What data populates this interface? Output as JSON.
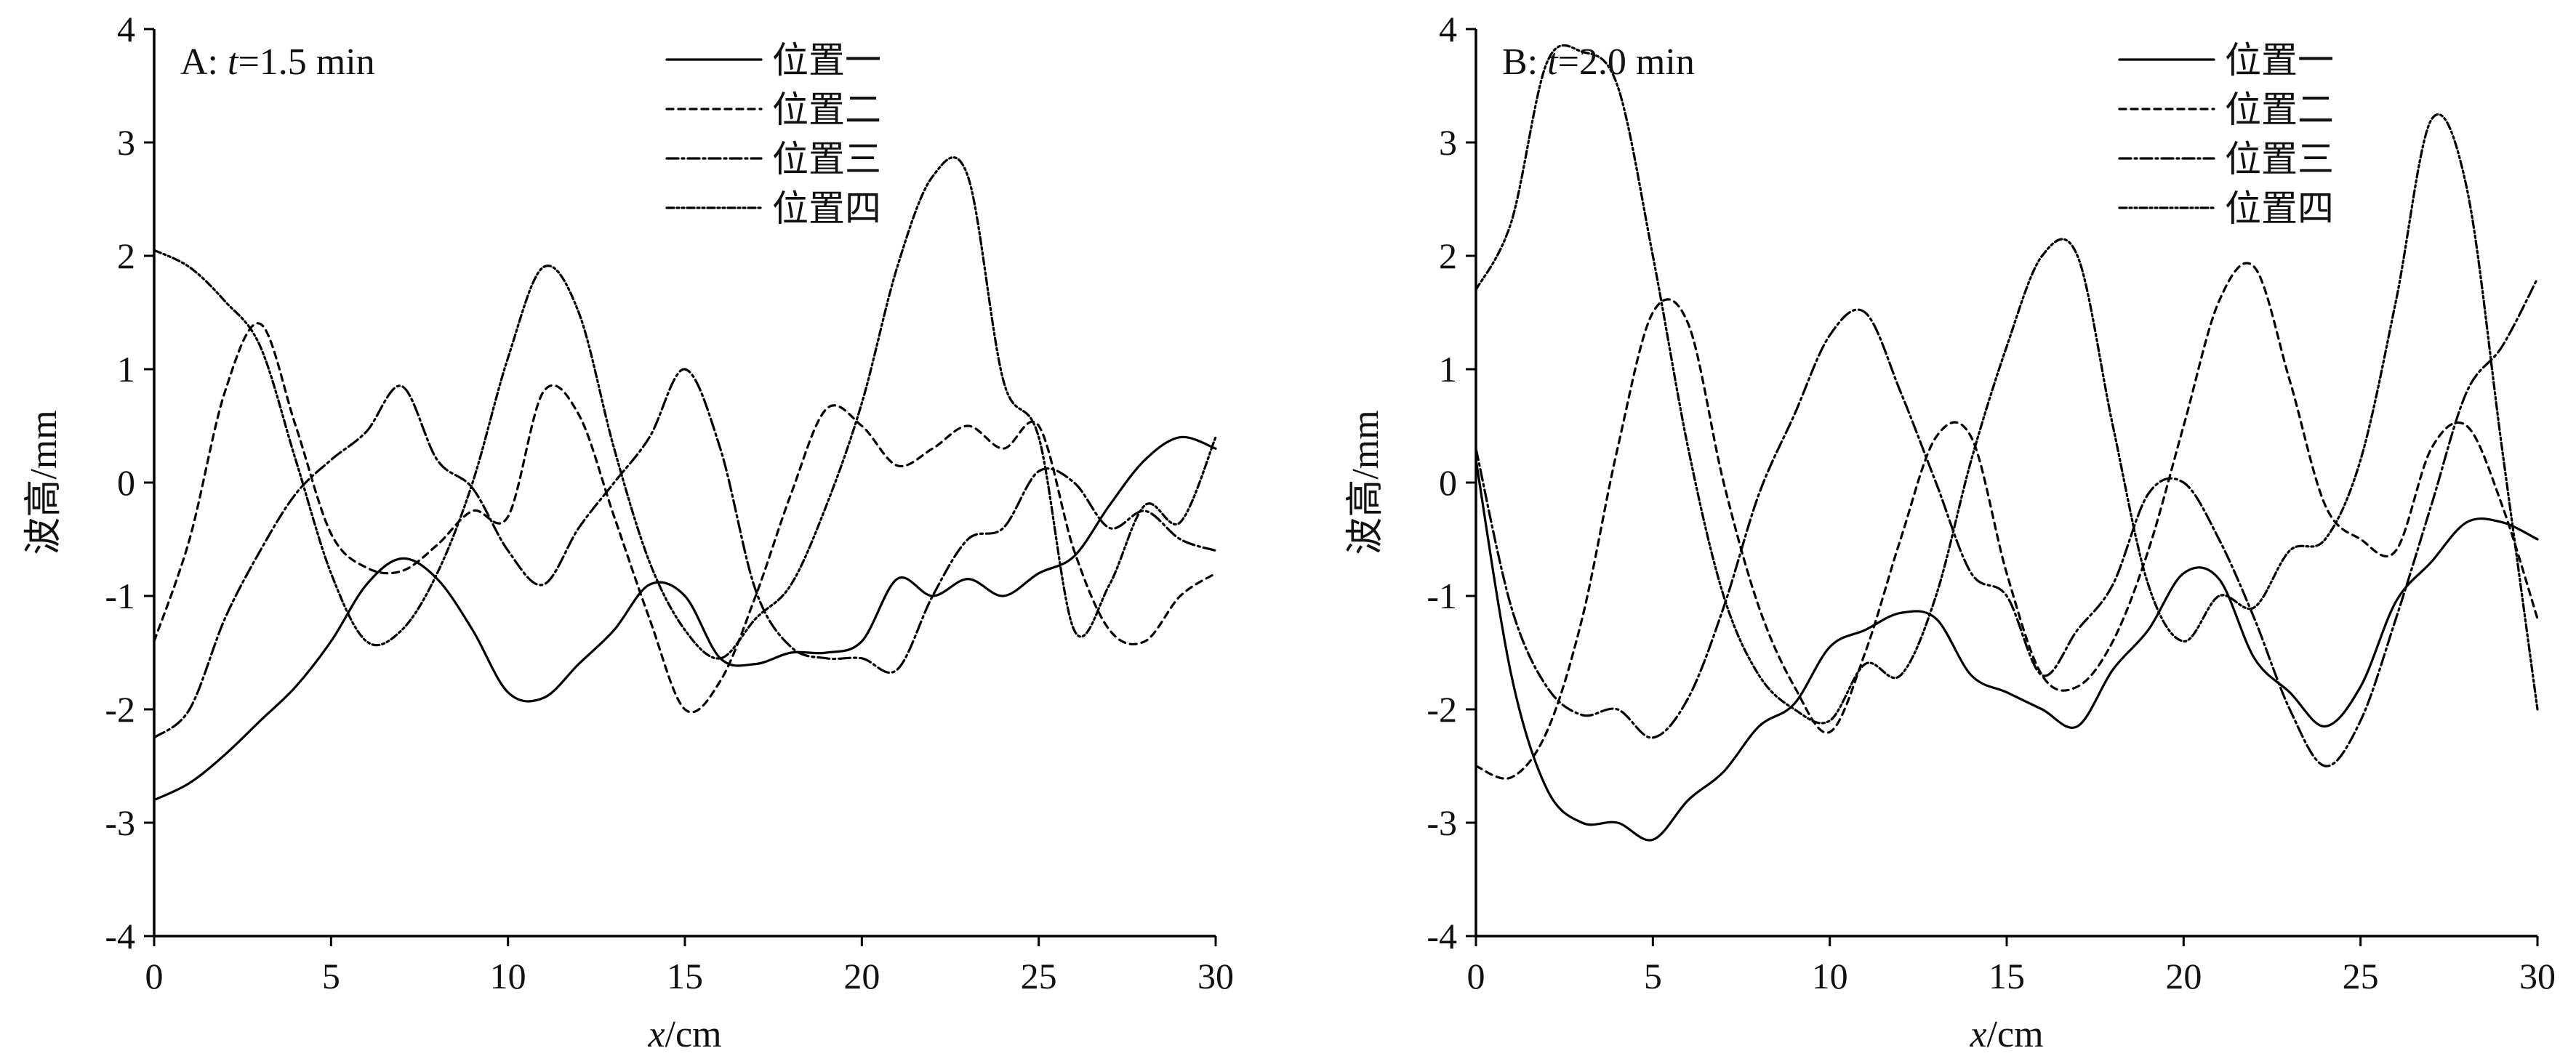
{
  "chart_data": [
    {
      "type": "line",
      "panel_label": "A: ",
      "panel_var": "t",
      "panel_value": "=1.5 min",
      "xlabel_var": "x",
      "xlabel_unit": "/cm",
      "ylabel": "波高/mm",
      "xlim": [
        0,
        30
      ],
      "ylim": [
        -4,
        4
      ],
      "xticks": [
        "0",
        "5",
        "10",
        "15",
        "20",
        "25",
        "30"
      ],
      "yticks": [
        "-4",
        "-3",
        "-2",
        "-1",
        "0",
        "1",
        "2",
        "3",
        "4"
      ],
      "legend_position": "top-right",
      "series": [
        {
          "name": "位置一",
          "dash": "solid",
          "x": [
            0,
            1,
            2,
            3,
            4,
            5,
            6,
            7,
            8,
            9,
            10,
            11,
            12,
            13,
            14,
            15,
            16,
            17,
            18,
            19,
            20,
            21,
            22,
            23,
            24,
            25,
            26,
            27,
            28,
            29,
            30
          ],
          "y": [
            -2.8,
            -2.65,
            -2.4,
            -2.1,
            -1.8,
            -1.4,
            -0.9,
            -0.67,
            -0.85,
            -1.3,
            -1.85,
            -1.9,
            -1.6,
            -1.3,
            -0.9,
            -1.0,
            -1.55,
            -1.6,
            -1.5,
            -1.5,
            -1.4,
            -0.85,
            -1.0,
            -0.85,
            -1.0,
            -0.8,
            -0.65,
            -0.2,
            0.2,
            0.4,
            0.3
          ]
        },
        {
          "name": "位置二",
          "dash": "9,7",
          "x": [
            0,
            1,
            2,
            3,
            4,
            5,
            6,
            7,
            8,
            9,
            10,
            11,
            12,
            13,
            14,
            15,
            16,
            17,
            18,
            19,
            20,
            21,
            22,
            23,
            24,
            25,
            26,
            27,
            28,
            29,
            30
          ],
          "y": [
            -1.4,
            -0.5,
            0.8,
            1.4,
            0.5,
            -0.45,
            -0.75,
            -0.78,
            -0.55,
            -0.25,
            -0.3,
            0.8,
            0.6,
            -0.3,
            -1.2,
            -2.0,
            -1.75,
            -1.0,
            -0.1,
            0.65,
            0.5,
            0.15,
            0.3,
            0.5,
            0.3,
            0.5,
            -0.6,
            -1.3,
            -1.4,
            -1.0,
            -0.8
          ]
        },
        {
          "name": "位置三",
          "dash": "16,5,3,5",
          "x": [
            0,
            1,
            2,
            3,
            4,
            5,
            6,
            7,
            8,
            9,
            10,
            11,
            12,
            13,
            14,
            15,
            16,
            17,
            18,
            19,
            20,
            21,
            22,
            23,
            24,
            25,
            26,
            27,
            28,
            29,
            30
          ],
          "y": [
            -2.25,
            -2.0,
            -1.2,
            -0.6,
            -0.1,
            0.2,
            0.45,
            0.85,
            0.2,
            -0.05,
            -0.6,
            -0.9,
            -0.4,
            0.0,
            0.4,
            1.0,
            0.3,
            -0.95,
            -1.45,
            -1.55,
            -1.55,
            -1.65,
            -1.0,
            -0.5,
            -0.4,
            0.1,
            0.0,
            -0.4,
            -0.25,
            -0.5,
            -0.6
          ]
        },
        {
          "name": "位置四",
          "dash": "10,4,3,4,3,4",
          "x": [
            0,
            1,
            2,
            3,
            4,
            5,
            6,
            7,
            8,
            9,
            10,
            11,
            12,
            13,
            14,
            15,
            16,
            17,
            18,
            19,
            20,
            21,
            22,
            23,
            24,
            25,
            26,
            27,
            28,
            29,
            30
          ],
          "y": [
            2.05,
            1.9,
            1.6,
            1.2,
            0.2,
            -0.8,
            -1.4,
            -1.3,
            -0.8,
            0.0,
            1.1,
            1.9,
            1.5,
            0.3,
            -0.7,
            -1.3,
            -1.55,
            -1.2,
            -0.9,
            -0.2,
            0.7,
            1.9,
            2.7,
            2.7,
            0.9,
            0.4,
            -1.3,
            -0.9,
            -0.2,
            -0.35,
            0.4
          ]
        }
      ]
    },
    {
      "type": "line",
      "panel_label": "B: ",
      "panel_var": "t",
      "panel_value": "=2.0 min",
      "xlabel_var": "x",
      "xlabel_unit": "/cm",
      "ylabel": "波高/mm",
      "xlim": [
        0,
        30
      ],
      "ylim": [
        -4,
        4
      ],
      "xticks": [
        "0",
        "5",
        "10",
        "15",
        "20",
        "25",
        "30"
      ],
      "yticks": [
        "-4",
        "-3",
        "-2",
        "-1",
        "0",
        "1",
        "2",
        "3",
        "4"
      ],
      "legend_position": "top-right",
      "series": [
        {
          "name": "位置一",
          "dash": "solid",
          "x": [
            0,
            1,
            2,
            3,
            4,
            5,
            6,
            7,
            8,
            9,
            10,
            11,
            12,
            13,
            14,
            15,
            16,
            17,
            18,
            19,
            20,
            21,
            22,
            23,
            24,
            25,
            26,
            27,
            28,
            29,
            30
          ],
          "y": [
            0.2,
            -1.7,
            -2.7,
            -3.0,
            -3.0,
            -3.15,
            -2.8,
            -2.55,
            -2.15,
            -1.95,
            -1.45,
            -1.3,
            -1.15,
            -1.2,
            -1.7,
            -1.85,
            -2.0,
            -2.15,
            -1.65,
            -1.3,
            -0.8,
            -0.85,
            -1.55,
            -1.85,
            -2.15,
            -1.8,
            -1.05,
            -0.7,
            -0.35,
            -0.35,
            -0.5
          ]
        },
        {
          "name": "位置二",
          "dash": "9,7",
          "x": [
            0,
            1,
            2,
            3,
            4,
            5,
            6,
            7,
            8,
            9,
            10,
            11,
            12,
            13,
            14,
            15,
            16,
            17,
            18,
            19,
            20,
            21,
            22,
            23,
            24,
            25,
            26,
            27,
            28,
            29,
            30
          ],
          "y": [
            -2.5,
            -2.6,
            -2.2,
            -1.2,
            0.3,
            1.5,
            1.4,
            0.0,
            -1.1,
            -1.8,
            -2.2,
            -1.5,
            -0.5,
            0.4,
            0.4,
            -0.8,
            -1.7,
            -1.8,
            -1.4,
            -0.6,
            0.5,
            1.6,
            1.9,
            0.9,
            -0.2,
            -0.5,
            -0.6,
            0.3,
            0.5,
            -0.2,
            -1.2
          ]
        },
        {
          "name": "位置三",
          "dash": "16,5,3,5",
          "x": [
            0,
            1,
            2,
            3,
            4,
            5,
            6,
            7,
            8,
            9,
            10,
            11,
            12,
            13,
            14,
            15,
            16,
            17,
            18,
            19,
            20,
            21,
            22,
            23,
            24,
            25,
            26,
            27,
            28,
            29,
            30
          ],
          "y": [
            0.3,
            -1.1,
            -1.8,
            -2.05,
            -2.0,
            -2.25,
            -1.9,
            -1.1,
            -0.1,
            0.6,
            1.3,
            1.5,
            0.8,
            0.0,
            -0.8,
            -1.0,
            -1.7,
            -1.3,
            -0.9,
            -0.1,
            0.0,
            -0.5,
            -1.2,
            -2.0,
            -2.5,
            -2.1,
            -1.2,
            -0.2,
            0.8,
            1.2,
            1.8
          ]
        },
        {
          "name": "位置四",
          "dash": "10,4,3,4,3,4",
          "x": [
            0,
            1,
            2,
            3,
            4,
            5,
            6,
            7,
            8,
            9,
            10,
            11,
            12,
            13,
            14,
            15,
            16,
            17,
            18,
            19,
            20,
            21,
            22,
            23,
            24,
            25,
            26,
            27,
            28,
            29,
            30
          ],
          "y": [
            1.7,
            2.3,
            3.7,
            3.8,
            3.5,
            2.0,
            0.3,
            -1.0,
            -1.7,
            -2.0,
            -2.1,
            -1.6,
            -1.7,
            -1.0,
            0.2,
            1.2,
            2.0,
            2.0,
            0.5,
            -0.9,
            -1.4,
            -1.0,
            -1.1,
            -0.6,
            -0.5,
            0.2,
            1.6,
            3.2,
            2.6,
            0.3,
            -2.0
          ]
        }
      ]
    }
  ]
}
